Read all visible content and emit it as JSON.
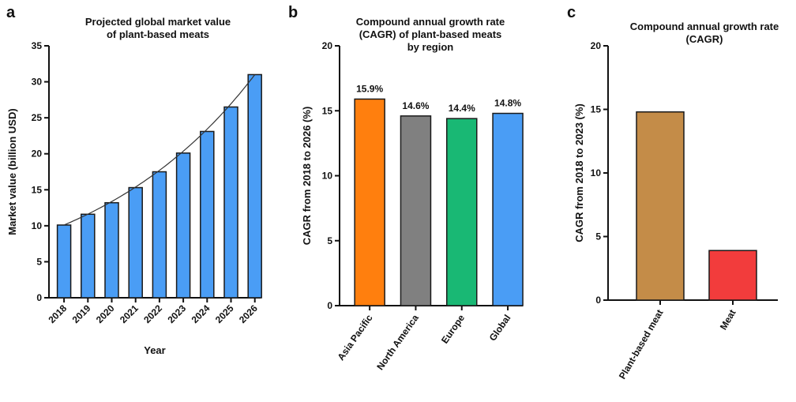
{
  "chart_data": [
    {
      "panel": "a",
      "type": "bar",
      "title": [
        "Projected global market value",
        "of plant-based meats"
      ],
      "xlabel": "Year",
      "ylabel": "Market value (billion USD)",
      "categories": [
        "2018",
        "2019",
        "2020",
        "2021",
        "2022",
        "2023",
        "2024",
        "2025",
        "2026"
      ],
      "values": [
        10.1,
        11.6,
        13.2,
        15.3,
        17.5,
        20.1,
        23.1,
        26.5,
        31.0
      ],
      "ylim": [
        0,
        35
      ],
      "yticks": [
        0,
        5,
        10,
        15,
        20,
        25,
        30,
        35
      ],
      "trendline": true,
      "colors": {
        "bar": "#4a9df5",
        "edge": "#1a1a1a"
      }
    },
    {
      "panel": "b",
      "type": "bar",
      "title": [
        "Compound annual growth rate",
        "(CAGR) of plant-based meats",
        "by region"
      ],
      "xlabel": "",
      "ylabel": "CAGR from 2018 to 2026 (%)",
      "categories": [
        "Asia Pacific",
        "North America",
        "Europe",
        "Global"
      ],
      "values": [
        15.9,
        14.6,
        14.4,
        14.8
      ],
      "data_labels": [
        "15.9%",
        "14.6%",
        "14.4%",
        "14.8%"
      ],
      "ylim": [
        0,
        20
      ],
      "yticks": [
        0,
        5,
        10,
        15,
        20
      ],
      "colors": [
        "#ff7f0e",
        "#808080",
        "#19b874",
        "#4a9df5"
      ]
    },
    {
      "panel": "c",
      "type": "bar",
      "title": [
        "Compound annual growth rate",
        "(CAGR)"
      ],
      "xlabel": "",
      "ylabel": "CAGR from 2018 to 2023 (%)",
      "categories": [
        "Plant-based meat",
        "Meat"
      ],
      "values": [
        14.8,
        3.9
      ],
      "ylim": [
        0,
        20
      ],
      "yticks": [
        0,
        5,
        10,
        15,
        20
      ],
      "colors": [
        "#c48c48",
        "#f23c3c"
      ]
    }
  ]
}
